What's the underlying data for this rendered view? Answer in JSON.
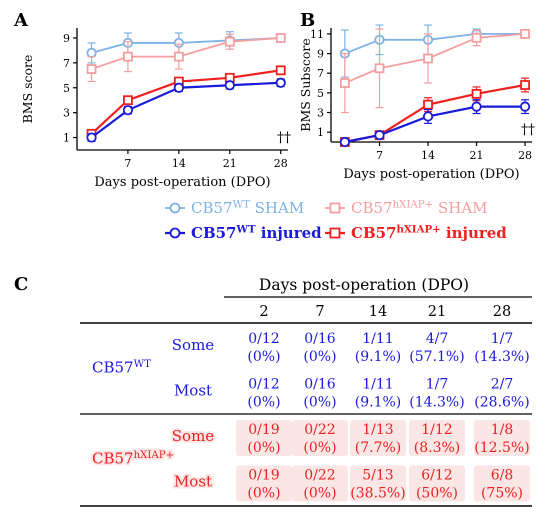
{
  "panels": {
    "a": "A",
    "b": "B",
    "c": "C"
  },
  "colors": {
    "wt_sham": "#7fb2e5",
    "wt_injured": "#1a1adb",
    "hxiap_sham": "#f49ea0",
    "hxiap_injured": "#ee2020",
    "hxiap_row_bg": "#fbe6e6"
  },
  "chart_data": [
    {
      "type": "line",
      "panel": "A",
      "xlabel": "Days post-operation (DPO)",
      "ylabel": "BMS score",
      "x": [
        2,
        7,
        14,
        21,
        28
      ],
      "xticks": [
        7,
        14,
        21,
        28
      ],
      "yticks": [
        1,
        3,
        5,
        7,
        9
      ],
      "xlim": [
        0,
        29
      ],
      "ylim": [
        0,
        9.8
      ],
      "annotation": "††",
      "series": [
        {
          "key": "wt_sham",
          "values": [
            7.8,
            8.6,
            8.6,
            8.8,
            9.0
          ],
          "err": [
            0.8,
            0.8,
            0.8,
            0.7,
            0.0
          ]
        },
        {
          "key": "hxiap_sham",
          "values": [
            6.5,
            7.5,
            7.5,
            8.7,
            9.0
          ],
          "err": [
            1.0,
            1.2,
            1.0,
            0.6,
            0.0
          ]
        },
        {
          "key": "hxiap_injured",
          "values": [
            1.3,
            4.0,
            5.5,
            5.8,
            6.4
          ],
          "err": [
            0.3,
            0.3,
            0.3,
            0.3,
            0.3
          ]
        },
        {
          "key": "wt_injured",
          "values": [
            1.0,
            3.2,
            5.0,
            5.2,
            5.4
          ],
          "err": [
            0.3,
            0.3,
            0.3,
            0.3,
            0.3
          ]
        }
      ]
    },
    {
      "type": "line",
      "panel": "B",
      "xlabel": "Days post-operation (DPO)",
      "ylabel": "BMS Subscore",
      "x": [
        2,
        7,
        14,
        21,
        28
      ],
      "xticks": [
        7,
        14,
        21,
        28
      ],
      "yticks": [
        1,
        3,
        5,
        7,
        9,
        11
      ],
      "xlim": [
        0,
        29
      ],
      "ylim": [
        0,
        11.6
      ],
      "annotation": "††",
      "series": [
        {
          "key": "wt_sham",
          "values": [
            9.0,
            10.4,
            10.4,
            11.0,
            11.0
          ],
          "err": [
            2.4,
            1.5,
            1.5,
            0.5,
            0.0
          ]
        },
        {
          "key": "hxiap_sham",
          "values": [
            6.0,
            7.5,
            8.5,
            10.6,
            11.0
          ],
          "err": [
            3.0,
            4.0,
            2.5,
            0.8,
            0.0
          ]
        },
        {
          "key": "hxiap_injured",
          "values": [
            0.0,
            0.7,
            3.8,
            4.9,
            5.8
          ],
          "err": [
            0.2,
            0.3,
            0.7,
            0.7,
            0.7
          ]
        },
        {
          "key": "wt_injured",
          "values": [
            0.0,
            0.7,
            2.6,
            3.6,
            3.6
          ],
          "err": [
            0.2,
            0.3,
            0.7,
            0.7,
            0.7
          ]
        }
      ]
    }
  ],
  "legend": [
    {
      "key": "wt_sham",
      "base": "CB57",
      "sup": "WT",
      "label": " SHAM",
      "bold": false
    },
    {
      "key": "hxiap_sham",
      "base": "CB57",
      "sup": "hXIAP+",
      "label": " SHAM",
      "bold": false
    },
    {
      "key": "wt_injured",
      "base": "CB57",
      "sup": "WT",
      "label": " injured",
      "bold": true
    },
    {
      "key": "hxiap_injured",
      "base": "CB57",
      "sup": "hXIAP+",
      "label": " injured",
      "bold": true
    }
  ],
  "table": {
    "header": "Days post-operation (DPO)",
    "days": [
      "2",
      "7",
      "14",
      "21",
      "28"
    ],
    "groups": [
      {
        "key": "wt_injured",
        "base": "CB57",
        "sup": "WT",
        "rows": [
          {
            "label": "Some",
            "cells": [
              [
                "0/12",
                "(0%)"
              ],
              [
                "0/16",
                "(0%)"
              ],
              [
                "1/11",
                "(9.1%)"
              ],
              [
                "4/7",
                "(57.1%)"
              ],
              [
                "1/7",
                "(14.3%)"
              ]
            ]
          },
          {
            "label": "Most",
            "cells": [
              [
                "0/12",
                "(0%)"
              ],
              [
                "0/16",
                "(0%)"
              ],
              [
                "1/11",
                "(9.1%)"
              ],
              [
                "1/7",
                "(14.3%)"
              ],
              [
                "2/7",
                "(28.6%)"
              ]
            ]
          }
        ]
      },
      {
        "key": "hxiap_injured",
        "base": "CB57",
        "sup": "hXIAP+",
        "rows": [
          {
            "label": "Some",
            "cells": [
              [
                "0/19",
                "(0%)"
              ],
              [
                "0/22",
                "(0%)"
              ],
              [
                "1/13",
                "(7.7%)"
              ],
              [
                "1/12",
                "(8.3%)"
              ],
              [
                "1/8",
                "(12.5%)"
              ]
            ]
          },
          {
            "label": "Most",
            "cells": [
              [
                "0/19",
                "(0%)"
              ],
              [
                "0/22",
                "(0%)"
              ],
              [
                "5/13",
                "(38.5%)"
              ],
              [
                "6/12",
                "(50%)"
              ],
              [
                "6/8",
                "(75%)"
              ]
            ]
          }
        ]
      }
    ]
  }
}
